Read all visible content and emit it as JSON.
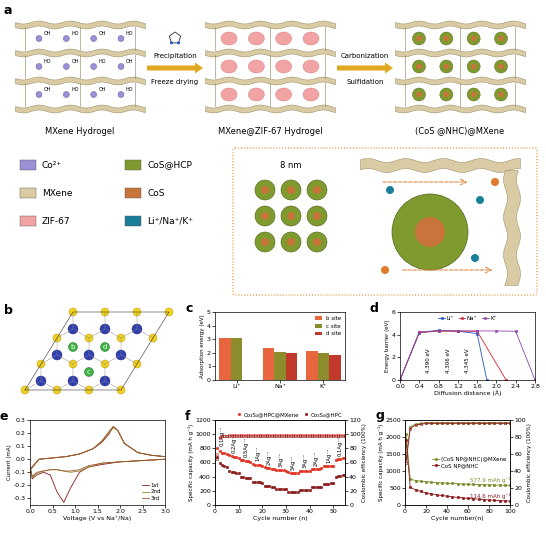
{
  "schematic": {
    "panel": "a",
    "stages": [
      "MXene Hydrogel",
      "MXene@ZIF-67 Hydrogel",
      "(CoS @NHC)@MXene"
    ],
    "steps": [
      [
        "Precipitation",
        "Freeze drying"
      ],
      [
        "Carbonization",
        "Sulfidation"
      ]
    ],
    "surface_groups": [
      "OH",
      "HO"
    ],
    "legend": [
      {
        "label": "Co²⁺",
        "color": "#9b8fd6"
      },
      {
        "label": "CoS@HCP",
        "color": "#7f9a2e"
      },
      {
        "label": "MXene",
        "color": "#d9cba3"
      },
      {
        "label": "CoS",
        "color": "#c8743a"
      },
      {
        "label": "ZIF-67",
        "color": "#f2a3a3"
      },
      {
        "label": "Li⁺/Na⁺/K⁺",
        "color": "#1a7d9a"
      }
    ],
    "inset_label": "8 nm"
  },
  "structure": {
    "panel": "b",
    "site_labels": [
      "b",
      "c",
      "d"
    ]
  },
  "chart_data": [
    {
      "panel": "c",
      "type": "bar",
      "categories": [
        "Li⁺",
        "Na⁺",
        "K⁺"
      ],
      "series": [
        {
          "name": "b site",
          "color": "#e8663d",
          "values": [
            3.12,
            2.38,
            2.12
          ]
        },
        {
          "name": "c site",
          "color": "#8c8c2c",
          "values": [
            3.12,
            2.08,
            2.02
          ]
        },
        {
          "name": "d site",
          "color": "#c0392b",
          "values": [
            null,
            1.97,
            1.82
          ]
        }
      ],
      "y_label": "Adsorption energy (eV)",
      "ylim": [
        0,
        5
      ],
      "yticks": [
        0,
        1,
        2,
        3,
        4,
        5
      ],
      "legend": "upper right"
    },
    {
      "panel": "d",
      "type": "line",
      "x_label": "Diffusion distance (Å)",
      "y_label": "Energy barrier (eV)",
      "xlim": [
        0.0,
        2.8
      ],
      "xticks": [
        0.0,
        0.4,
        0.8,
        1.2,
        1.6,
        2.0,
        2.4,
        2.8
      ],
      "ylim": [
        0,
        6
      ],
      "yticks": [
        0,
        2,
        4,
        6
      ],
      "legend": "upper center",
      "marker": "s",
      "series": [
        {
          "name": "Li⁺",
          "color": "#2255cc",
          "x": [
            0.0,
            0.4,
            0.8,
            1.2,
            1.6,
            1.8
          ],
          "values": [
            0,
            4.15,
            4.39,
            4.3,
            4.1,
            0
          ]
        },
        {
          "name": "Na⁺",
          "color": "#d62728",
          "x": [
            0.0,
            0.4,
            0.8,
            1.2,
            1.6,
            2.2
          ],
          "values": [
            0,
            4.2,
            4.3,
            4.306,
            4.3,
            0
          ]
        },
        {
          "name": "K⁺",
          "color": "#8e44ad",
          "x": [
            0.0,
            0.4,
            0.8,
            1.2,
            1.6,
            2.0,
            2.4,
            2.8
          ],
          "values": [
            0,
            4.25,
            4.345,
            4.34,
            4.33,
            4.33,
            4.3,
            0
          ]
        }
      ],
      "annotations": [
        {
          "text": "4.390 eV",
          "x": 0.6
        },
        {
          "text": "4.306 eV",
          "x": 1.0
        },
        {
          "text": "4.345 eV",
          "x": 1.4
        }
      ]
    },
    {
      "panel": "e",
      "type": "line",
      "x_label": "Voltage (V vs Na⁺/Na)",
      "y_label": "Current (mA)",
      "xlim": [
        0.0,
        3.0
      ],
      "xticks": [
        0.0,
        0.5,
        1.0,
        1.5,
        2.0,
        2.5,
        3.0
      ],
      "ylim": [
        -0.35,
        0.3
      ],
      "yticks": [
        -0.3,
        -0.2,
        -0.1,
        0.0,
        0.1,
        0.2,
        0.3
      ],
      "legend": "lower right",
      "x": [
        3.0,
        2.5,
        2.0,
        1.6,
        1.3,
        1.1,
        0.9,
        0.75,
        0.6,
        0.45,
        0.3,
        0.15,
        0.05,
        0.01,
        0.2,
        0.5,
        0.8,
        1.1,
        1.4,
        1.6,
        1.75,
        1.85,
        1.95,
        2.1,
        2.4,
        2.7,
        3.0
      ],
      "series": [
        {
          "name": "1st",
          "color": "#8b1a1a",
          "values": [
            0.0,
            -0.01,
            -0.02,
            -0.04,
            -0.06,
            -0.1,
            -0.22,
            -0.33,
            -0.25,
            -0.12,
            -0.1,
            -0.12,
            -0.15,
            -0.08,
            0.0,
            0.01,
            0.02,
            0.04,
            0.08,
            0.13,
            0.19,
            0.25,
            0.22,
            0.12,
            0.05,
            0.03,
            0.02
          ]
        },
        {
          "name": "2nd",
          "color": "#8c8c2c",
          "values": [
            0.0,
            -0.01,
            -0.02,
            -0.03,
            -0.06,
            -0.09,
            -0.1,
            -0.09,
            -0.08,
            -0.08,
            -0.09,
            -0.11,
            -0.14,
            -0.08,
            0.0,
            0.01,
            0.02,
            0.04,
            0.08,
            0.14,
            0.2,
            0.24,
            0.22,
            0.12,
            0.05,
            0.03,
            0.02
          ]
        },
        {
          "name": "3rd",
          "color": "#a0522d",
          "values": [
            0.0,
            -0.01,
            -0.02,
            -0.03,
            -0.05,
            -0.08,
            -0.09,
            -0.09,
            -0.08,
            -0.08,
            -0.09,
            -0.1,
            -0.13,
            -0.07,
            0.0,
            0.01,
            0.02,
            0.04,
            0.08,
            0.14,
            0.21,
            0.25,
            0.22,
            0.12,
            0.05,
            0.03,
            0.02
          ]
        }
      ]
    },
    {
      "panel": "f",
      "type": "scatter",
      "x_label": "Cycle number (n)",
      "y_label": "Specific capacity (mA h g⁻¹)",
      "y2_label": "Coulombic efficiency (100%)",
      "xlim": [
        0,
        55
      ],
      "xticks": [
        0,
        10,
        20,
        30,
        40,
        50
      ],
      "ylim": [
        0,
        1200
      ],
      "yticks": [
        0,
        200,
        400,
        600,
        800,
        1000,
        1200
      ],
      "y2lim": [
        0,
        120
      ],
      "y2ticks": [
        0,
        20,
        40,
        60,
        80,
        100,
        120
      ],
      "legend": "upper right",
      "marker": "o",
      "x": [
        1,
        2,
        3,
        4,
        5,
        6,
        7,
        8,
        9,
        10,
        11,
        12,
        13,
        14,
        15,
        16,
        17,
        18,
        19,
        20,
        21,
        22,
        23,
        24,
        25,
        26,
        27,
        28,
        29,
        30,
        31,
        32,
        33,
        34,
        35,
        36,
        37,
        38,
        39,
        40,
        41,
        42,
        43,
        44,
        45,
        46,
        47,
        48,
        49,
        50,
        51,
        52,
        53,
        54,
        55
      ],
      "series": [
        {
          "name": "Co₃S₄@HPC@MXene",
          "color": "#e0301e",
          "values": [
            800,
            760,
            740,
            730,
            720,
            700,
            690,
            680,
            675,
            670,
            640,
            630,
            620,
            615,
            610,
            580,
            570,
            565,
            560,
            555,
            530,
            525,
            520,
            515,
            510,
            500,
            495,
            490,
            488,
            485,
            460,
            455,
            450,
            448,
            445,
            480,
            482,
            484,
            485,
            486,
            510,
            512,
            514,
            515,
            516,
            550,
            552,
            554,
            555,
            556,
            640,
            650,
            655,
            660,
            662
          ]
        },
        {
          "name": "Co₃S₄@HPC",
          "color": "#8b1a1a",
          "values": [
            680,
            600,
            570,
            550,
            540,
            480,
            470,
            460,
            455,
            450,
            400,
            390,
            385,
            380,
            375,
            330,
            325,
            320,
            318,
            315,
            270,
            265,
            262,
            260,
            258,
            230,
            228,
            225,
            223,
            222,
            190,
            185,
            183,
            182,
            180,
            210,
            212,
            213,
            214,
            215,
            250,
            252,
            253,
            254,
            255,
            300,
            302,
            303,
            304,
            305,
            400,
            410,
            415,
            418,
            420
          ]
        },
        {
          "color": "#e0301e",
          "axis": "y2",
          "values": [
            72,
            96,
            98,
            98,
            98,
            99,
            99,
            99,
            99,
            99,
            99,
            99,
            99,
            99,
            99,
            99,
            99,
            99,
            99,
            99,
            99,
            99,
            99,
            99,
            99,
            99,
            99,
            99,
            99,
            99,
            99,
            99,
            99,
            99,
            99,
            99,
            99,
            99,
            99,
            99,
            99,
            99,
            99,
            99,
            99,
            99,
            99,
            99,
            99,
            99,
            99,
            99,
            99,
            99,
            99
          ]
        },
        {
          "color": "#8b1a1a",
          "axis": "y2",
          "values": [
            65,
            94,
            97,
            97,
            98,
            98,
            98,
            98,
            98,
            98,
            98,
            98,
            98,
            98,
            98,
            98,
            98,
            98,
            98,
            98,
            98,
            98,
            98,
            98,
            98,
            98,
            98,
            98,
            98,
            98,
            98,
            98,
            98,
            98,
            98,
            98,
            98,
            98,
            98,
            98,
            98,
            98,
            98,
            98,
            98,
            98,
            98,
            98,
            98,
            98,
            98,
            98,
            98,
            98,
            98
          ]
        }
      ],
      "annotations": [
        {
          "text": "0.1Ag⁻¹",
          "x": 3
        },
        {
          "text": "0.2Ag⁻¹",
          "x": 8
        },
        {
          "text": "0.5Ag⁻¹",
          "x": 13
        },
        {
          "text": "1Ag⁻¹",
          "x": 18
        },
        {
          "text": "2Ag⁻¹",
          "x": 23
        },
        {
          "text": "3Ag⁻¹",
          "x": 28
        },
        {
          "text": "5Ag⁻¹",
          "x": 33
        },
        {
          "text": "3Ag⁻¹",
          "x": 38
        },
        {
          "text": "2Ag⁻¹",
          "x": 43
        },
        {
          "text": "1Ag⁻¹",
          "x": 48
        },
        {
          "text": "0.1Ag⁻¹",
          "x": 53
        }
      ]
    },
    {
      "panel": "g",
      "type": "line",
      "x_label": "Cycle number(n)",
      "y_label": "Specific capacity (mA h g⁻¹)",
      "y2_label": "Coulombic efficiency (100%)",
      "xlim": [
        0,
        100
      ],
      "xticks": [
        0,
        20,
        40,
        60,
        80,
        100
      ],
      "ylim": [
        0,
        2500
      ],
      "yticks": [
        0,
        500,
        1000,
        1500,
        2000,
        2500
      ],
      "y2lim": [
        0,
        100
      ],
      "y2ticks": [
        0,
        20,
        40,
        60,
        80,
        100
      ],
      "legend": "center right",
      "marker": "o",
      "x": [
        1,
        5,
        10,
        15,
        20,
        25,
        30,
        35,
        40,
        45,
        50,
        55,
        60,
        65,
        70,
        75,
        80,
        85,
        90,
        95,
        100
      ],
      "series": [
        {
          "name": "(CoS NP@NHC)@MXene",
          "color": "#7b8b2a",
          "values": [
            2100,
            760,
            720,
            700,
            685,
            672,
            660,
            650,
            642,
            635,
            628,
            620,
            614,
            608,
            602,
            597,
            592,
            588,
            584,
            581,
            577.9
          ],
          "annotation": "577.9 mAh g⁻¹"
        },
        {
          "name": "CoS NP@NHC",
          "color": "#8b1a1a",
          "values": [
            1900,
            520,
            450,
            400,
            360,
            330,
            300,
            280,
            260,
            240,
            225,
            210,
            198,
            186,
            175,
            160,
            150,
            140,
            130,
            122,
            114.6
          ],
          "annotation": "114.6 mAh g⁻¹"
        },
        {
          "color": "#7b8b2a",
          "axis": "y2",
          "values": [
            55,
            92,
            95,
            96,
            97,
            97,
            97,
            97,
            97,
            97,
            97,
            97,
            97,
            97,
            97,
            97,
            97,
            97,
            97,
            97,
            97
          ]
        },
        {
          "color": "#8b1a1a",
          "axis": "y2",
          "values": [
            50,
            90,
            94,
            95,
            96,
            96,
            96,
            96,
            96,
            96,
            96,
            96,
            96,
            96,
            96,
            96,
            96,
            96,
            96,
            96,
            96
          ]
        }
      ]
    }
  ]
}
